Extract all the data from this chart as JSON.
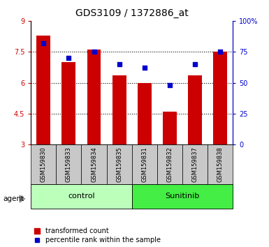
{
  "title": "GDS3109 / 1372886_at",
  "categories": [
    "GSM159830",
    "GSM159833",
    "GSM159834",
    "GSM159835",
    "GSM159831",
    "GSM159832",
    "GSM159837",
    "GSM159838"
  ],
  "bar_values": [
    8.3,
    7.0,
    7.6,
    6.35,
    6.0,
    4.6,
    6.35,
    7.5
  ],
  "percentile_values": [
    82,
    70,
    75,
    65,
    62,
    48,
    65,
    75
  ],
  "ylim_left": [
    3,
    9
  ],
  "ylim_right": [
    0,
    100
  ],
  "yticks_left": [
    3,
    4.5,
    6,
    7.5,
    9
  ],
  "yticks_right": [
    0,
    25,
    50,
    75,
    100
  ],
  "bar_color": "#cc0000",
  "dot_color": "#0000cc",
  "bar_width": 0.55,
  "groups": [
    {
      "label": "control",
      "color": "#bbffbb"
    },
    {
      "label": "Sunitinib",
      "color": "#44ee44"
    }
  ],
  "agent_label": "agent",
  "legend_bar_label": "transformed count",
  "legend_dot_label": "percentile rank within the sample",
  "title_fontsize": 10,
  "tick_fontsize": 7,
  "cat_fontsize": 6,
  "group_fontsize": 8,
  "legend_fontsize": 7,
  "x_tick_bg": "#c8c8c8",
  "grid_dotted_ticks": [
    4.5,
    6.0,
    7.5
  ]
}
